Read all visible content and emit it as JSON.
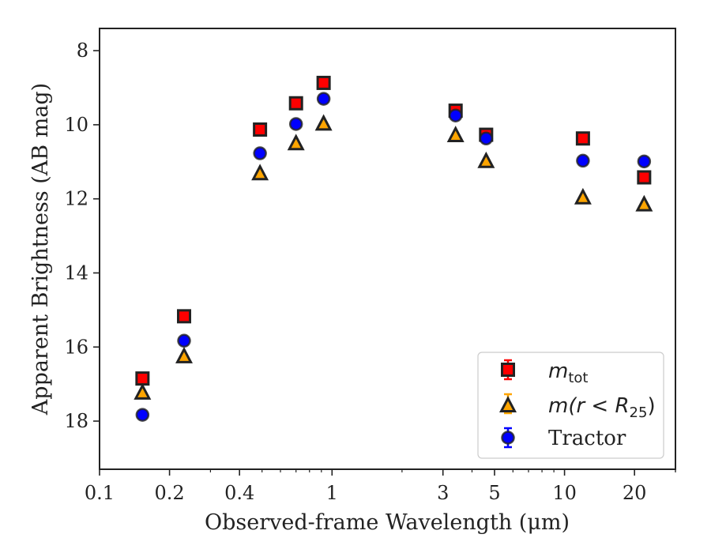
{
  "chart_data": {
    "type": "scatter",
    "title": "",
    "xlabel": "Observed-frame Wavelength (μm)",
    "ylabel": "Apparent Brightness (AB mag)",
    "xscale": "log",
    "xlim": [
      0.1,
      30
    ],
    "ylim": [
      19.3,
      7.4
    ],
    "y_inverted": true,
    "xticks": [
      0.1,
      0.2,
      0.4,
      1,
      3,
      5,
      10,
      20
    ],
    "xtick_labels": [
      "0.1",
      "0.2",
      "0.4",
      "1",
      "3",
      "5",
      "10",
      "20"
    ],
    "yticks": [
      8,
      10,
      12,
      14,
      16,
      18
    ],
    "ytick_labels": [
      "8",
      "10",
      "12",
      "14",
      "16",
      "18"
    ],
    "grid": false,
    "legend_position": "bottom-right",
    "x": [
      0.153,
      0.231,
      0.49,
      0.7,
      0.92,
      3.4,
      4.6,
      12.0,
      22.0
    ],
    "series": [
      {
        "name": "m_tot",
        "marker": "square",
        "color": "#ff0000",
        "y": [
          16.85,
          15.17,
          10.13,
          9.42,
          8.87,
          9.62,
          10.27,
          10.37,
          11.42
        ]
      },
      {
        "name": "m(r < R25)",
        "marker": "triangle",
        "color": "#ffa500",
        "y": [
          17.25,
          16.27,
          11.33,
          10.52,
          9.99,
          10.3,
          11.0,
          11.98,
          12.17
        ]
      },
      {
        "name": "Tractor",
        "marker": "circle",
        "color": "#0000ff",
        "y": [
          17.83,
          15.83,
          10.77,
          9.98,
          9.3,
          9.75,
          10.37,
          10.97,
          10.99
        ]
      }
    ]
  },
  "legend": {
    "items": [
      {
        "name": "m_tot",
        "base": "m",
        "sub": "tot"
      },
      {
        "name": "m(r < R25)",
        "base": "m(r < R",
        "sub": "25",
        "tail": ")"
      },
      {
        "name": "Tractor",
        "text": "Tractor"
      }
    ]
  },
  "colors": {
    "square_fill": "#ff0000",
    "triangle_fill": "#ffa500",
    "circle_fill": "#0000ff",
    "marker_edge": "#222222",
    "axis": "#222222"
  }
}
